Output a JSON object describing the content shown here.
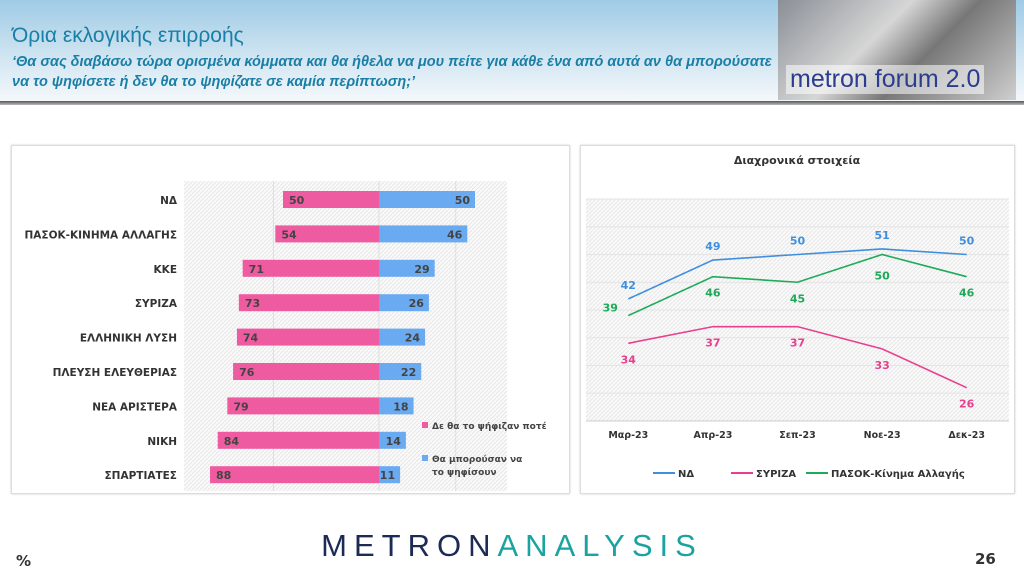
{
  "header": {
    "title": "Όρια εκλογικής επιρροής",
    "subtitle": "‘Θα σας διαβάσω τώρα ορισμένα κόμματα και θα ήθελα να μου πείτε για κάθε ένα από αυτά αν θα μπορούσατε να το ψηφίσετε ή δεν θα το ψηφίζατε σε καμία περίπτωση;’",
    "logo_text": "metron forum 2.0"
  },
  "footer": {
    "logo_part1": "METRON",
    "logo_part2": "ANALYSIS",
    "unit": "%",
    "page_number": "26"
  },
  "colors": {
    "pink": "#ef5ba1",
    "blue": "#6aaaf0",
    "nd": "#3f8fde",
    "syriza": "#e8408f",
    "pasok": "#1faa5a"
  },
  "chart_data": [
    {
      "type": "bar",
      "orientation": "horizontal-diverging",
      "categories": [
        "ΝΔ",
        "ΠΑΣΟΚ-ΚΙΝΗΜΑ ΑΛΛΑΓΗΣ",
        "ΚΚΕ",
        "ΣΥΡΙΖΑ",
        "ΕΛΛΗΝΙΚΗ ΛΥΣΗ",
        "ΠΛΕΥΣΗ ΕΛΕΥΘΕΡΙΑΣ",
        "ΝΕΑ ΑΡΙΣΤΕΡΑ",
        "ΝΙΚΗ",
        "ΣΠΑΡΤΙΑΤΕΣ"
      ],
      "series": [
        {
          "name": "Δε θα το ψήφιζαν ποτέ",
          "values": [
            50,
            54,
            71,
            73,
            74,
            76,
            79,
            84,
            88
          ],
          "color": "#ef5ba1"
        },
        {
          "name": "Θα μπορούσαν να το ψηφίσουν",
          "values": [
            50,
            46,
            29,
            26,
            24,
            22,
            18,
            14,
            11
          ],
          "color": "#6aaaf0"
        }
      ],
      "legend": "right"
    },
    {
      "type": "line",
      "title": "Διαχρονικά στοιχεία",
      "categories": [
        "Μαρ-23",
        "Απρ-23",
        "Σεπ-23",
        "Νοε-23",
        "Δεκ-23"
      ],
      "series": [
        {
          "name": "ΝΔ",
          "values": [
            42,
            49,
            50,
            51,
            50
          ],
          "color": "#3f8fde"
        },
        {
          "name": "ΣΥΡΙΖΑ",
          "values": [
            34,
            37,
            37,
            33,
            26
          ],
          "color": "#e8408f"
        },
        {
          "name": "ΠΑΣΟΚ-Κίνημα Αλλαγής",
          "values": [
            39,
            46,
            45,
            50,
            46
          ],
          "color": "#1faa5a"
        }
      ],
      "ylim": [
        20,
        60
      ],
      "grid": true,
      "legend": "bottom"
    }
  ]
}
